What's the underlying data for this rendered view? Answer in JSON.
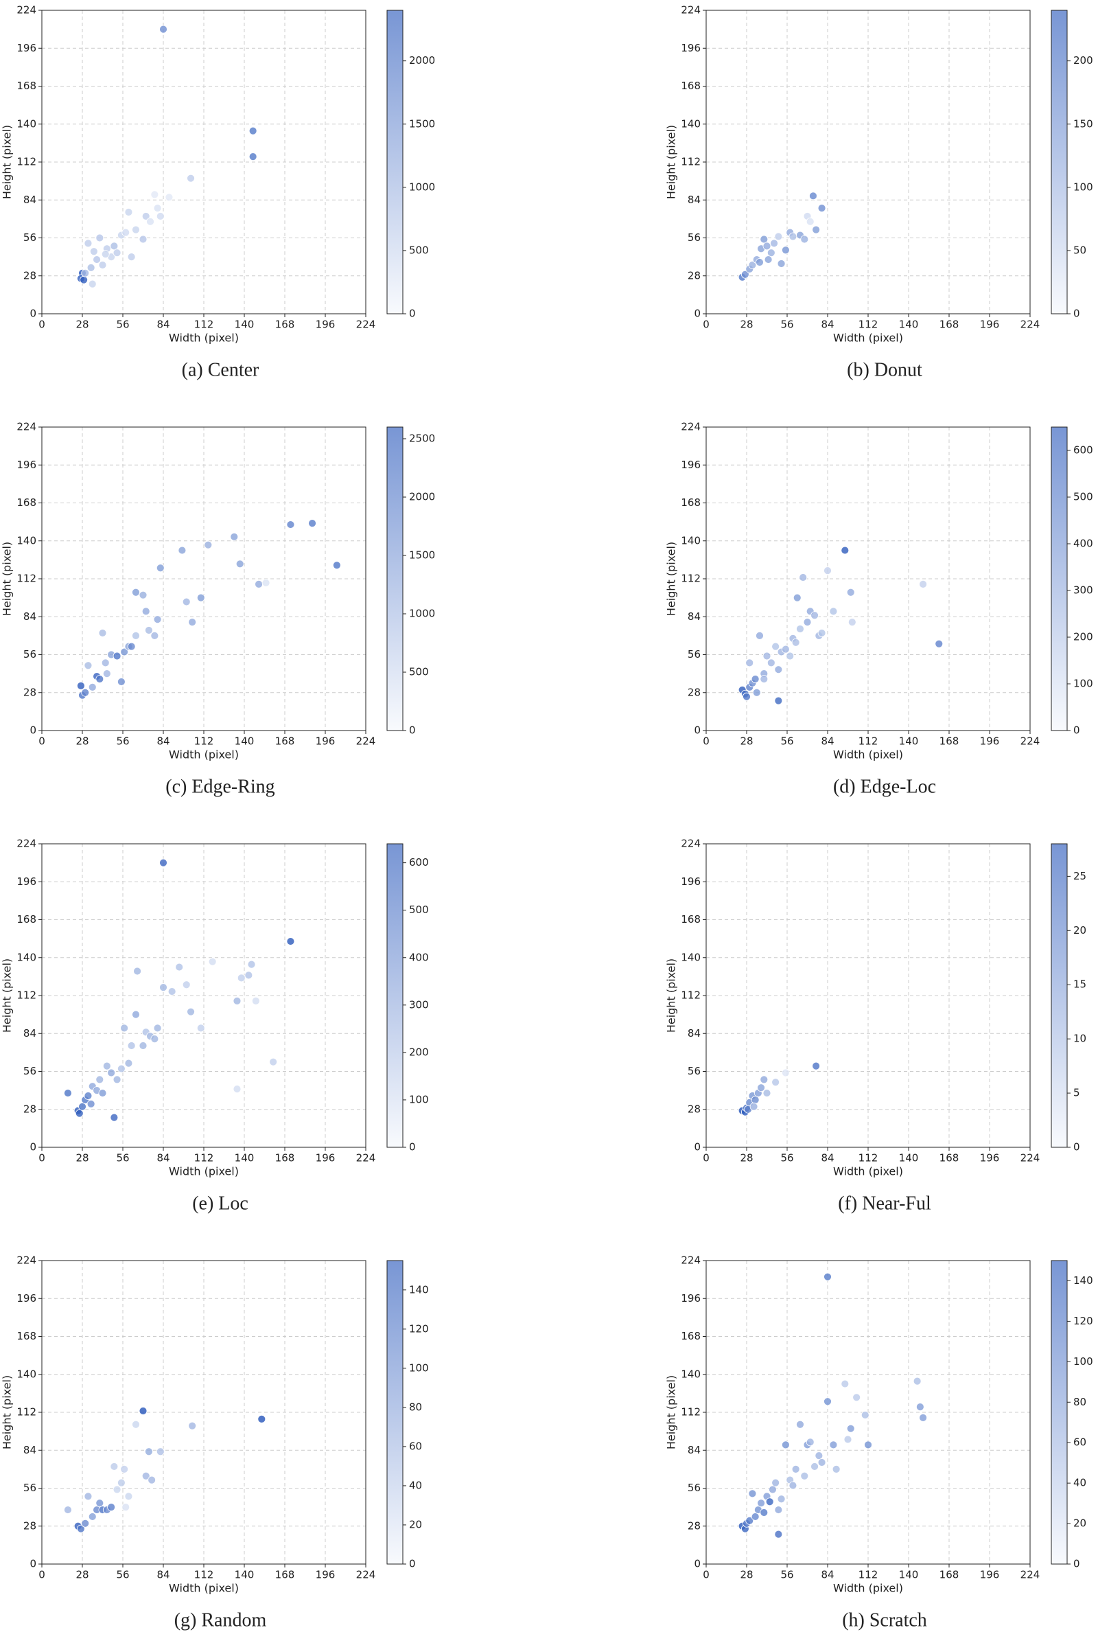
{
  "chart_data": [
    {
      "type": "scatter",
      "title": "(a) Center",
      "xlabel": "Width (pixel)",
      "ylabel": "Height (pixel)",
      "xlim": [
        0,
        224
      ],
      "ylim": [
        0,
        224
      ],
      "xticks": [
        0,
        28,
        56,
        84,
        112,
        140,
        168,
        196,
        224
      ],
      "yticks": [
        0,
        28,
        56,
        84,
        112,
        140,
        168,
        196,
        224
      ],
      "grid": true,
      "cmap": [
        "#f4f7fc",
        "#1f50b8"
      ],
      "clim": [
        0,
        2400
      ],
      "cticks": [
        0,
        500,
        1000,
        1500,
        2000
      ],
      "x": [
        84,
        146,
        146,
        103,
        78,
        88,
        28,
        27,
        29,
        32,
        35,
        40,
        45,
        50,
        55,
        60,
        62,
        70,
        72,
        75,
        80,
        82,
        58,
        48,
        38,
        42,
        34,
        30,
        52,
        65,
        36,
        44
      ],
      "values": [
        210,
        135,
        116,
        100,
        88,
        86,
        30,
        26,
        25,
        52,
        22,
        56,
        48,
        50,
        58,
        75,
        42,
        55,
        72,
        68,
        78,
        72,
        60,
        42,
        40,
        36,
        34,
        30,
        45,
        62,
        46,
        44
      ],
      "color_values": [
        1500,
        1800,
        1800,
        600,
        200,
        200,
        2300,
        2200,
        2200,
        600,
        500,
        700,
        600,
        800,
        500,
        500,
        600,
        700,
        600,
        300,
        300,
        400,
        400,
        500,
        700,
        600,
        800,
        900,
        600,
        500,
        600,
        500
      ]
    },
    {
      "type": "scatter",
      "title": "(b) Donut",
      "xlabel": "Width (pixel)",
      "ylabel": "Height (pixel)",
      "xlim": [
        0,
        224
      ],
      "ylim": [
        0,
        224
      ],
      "xticks": [
        0,
        28,
        56,
        84,
        112,
        140,
        168,
        196,
        224
      ],
      "yticks": [
        0,
        28,
        56,
        84,
        112,
        140,
        168,
        196,
        224
      ],
      "grid": true,
      "cmap": [
        "#f4f7fc",
        "#1f50b8"
      ],
      "clim": [
        0,
        240
      ],
      "cticks": [
        0,
        50,
        100,
        150,
        200
      ],
      "x": [
        25,
        27,
        30,
        32,
        35,
        38,
        40,
        42,
        45,
        47,
        50,
        55,
        58,
        60,
        65,
        70,
        72,
        74,
        76,
        80,
        37,
        43,
        52,
        68
      ],
      "values": [
        27,
        29,
        33,
        36,
        40,
        48,
        55,
        50,
        45,
        52,
        57,
        47,
        60,
        57,
        58,
        72,
        68,
        87,
        62,
        78,
        38,
        40,
        37,
        55
      ],
      "color_values": [
        180,
        150,
        120,
        100,
        110,
        120,
        130,
        110,
        100,
        90,
        60,
        140,
        110,
        80,
        120,
        40,
        30,
        160,
        130,
        150,
        130,
        120,
        120,
        100
      ]
    },
    {
      "type": "scatter",
      "title": "(c) Edge-Ring",
      "xlabel": "Width (pixel)",
      "ylabel": "Height (pixel)",
      "xlim": [
        0,
        224
      ],
      "ylim": [
        0,
        224
      ],
      "xticks": [
        0,
        28,
        56,
        84,
        112,
        140,
        168,
        196,
        224
      ],
      "yticks": [
        0,
        28,
        56,
        84,
        112,
        140,
        168,
        196,
        224
      ],
      "grid": true,
      "cmap": [
        "#f4f7fc",
        "#1f50b8"
      ],
      "clim": [
        0,
        2600
      ],
      "cticks": [
        0,
        500,
        1000,
        1500,
        2000,
        2500
      ],
      "x": [
        27,
        28,
        30,
        35,
        38,
        40,
        42,
        44,
        48,
        52,
        55,
        57,
        60,
        62,
        65,
        65,
        70,
        72,
        74,
        78,
        80,
        82,
        97,
        100,
        104,
        110,
        115,
        133,
        137,
        150,
        155,
        172,
        187,
        204,
        32,
        45
      ],
      "values": [
        33,
        26,
        28,
        32,
        40,
        38,
        72,
        50,
        56,
        55,
        36,
        58,
        62,
        62,
        70,
        102,
        100,
        88,
        74,
        70,
        82,
        120,
        133,
        95,
        80,
        98,
        137,
        143,
        123,
        108,
        109,
        152,
        153,
        122,
        48,
        42
      ],
      "color_values": [
        2400,
        2000,
        1800,
        1200,
        2300,
        2000,
        900,
        1000,
        1300,
        2000,
        1600,
        1500,
        1300,
        1700,
        800,
        1400,
        1100,
        1200,
        900,
        1000,
        1200,
        1400,
        1300,
        1000,
        1200,
        1400,
        1100,
        1300,
        1300,
        1200,
        300,
        1800,
        1900,
        2000,
        900,
        1000
      ]
    },
    {
      "type": "scatter",
      "title": "(d) Edge-Loc",
      "xlabel": "Width (pixel)",
      "ylabel": "Height (pixel)",
      "xlim": [
        0,
        224
      ],
      "ylim": [
        0,
        224
      ],
      "xticks": [
        0,
        28,
        56,
        84,
        112,
        140,
        168,
        196,
        224
      ],
      "yticks": [
        0,
        28,
        56,
        84,
        112,
        140,
        168,
        196,
        224
      ],
      "grid": true,
      "cmap": [
        "#f4f7fc",
        "#1f50b8"
      ],
      "clim": [
        0,
        650
      ],
      "cticks": [
        0,
        100,
        200,
        300,
        400,
        500,
        600
      ],
      "x": [
        25,
        27,
        28,
        30,
        32,
        34,
        35,
        37,
        40,
        42,
        45,
        48,
        50,
        50,
        52,
        55,
        58,
        60,
        62,
        63,
        65,
        67,
        70,
        72,
        75,
        78,
        80,
        84,
        88,
        96,
        100,
        101,
        150,
        161,
        30,
        40
      ],
      "values": [
        30,
        27,
        25,
        32,
        35,
        38,
        28,
        70,
        42,
        55,
        50,
        62,
        22,
        45,
        58,
        60,
        55,
        68,
        65,
        98,
        75,
        113,
        80,
        88,
        85,
        70,
        72,
        118,
        88,
        133,
        102,
        80,
        108,
        64,
        50,
        38
      ],
      "color_values": [
        600,
        550,
        500,
        450,
        400,
        420,
        350,
        300,
        300,
        250,
        250,
        200,
        550,
        300,
        250,
        250,
        200,
        250,
        220,
        350,
        200,
        250,
        300,
        300,
        250,
        250,
        200,
        150,
        200,
        600,
        300,
        150,
        150,
        450,
        250,
        250
      ]
    },
    {
      "type": "scatter",
      "title": "(e) Loc",
      "xlabel": "Width (pixel)",
      "ylabel": "Height (pixel)",
      "xlim": [
        0,
        224
      ],
      "ylim": [
        0,
        224
      ],
      "xticks": [
        0,
        28,
        56,
        84,
        112,
        140,
        168,
        196,
        224
      ],
      "yticks": [
        0,
        28,
        56,
        84,
        112,
        140,
        168,
        196,
        224
      ],
      "grid": true,
      "cmap": [
        "#f4f7fc",
        "#1f50b8"
      ],
      "clim": [
        0,
        640
      ],
      "cticks": [
        0,
        100,
        200,
        300,
        400,
        500,
        600
      ],
      "x": [
        18,
        25,
        26,
        28,
        30,
        32,
        34,
        35,
        38,
        40,
        42,
        45,
        48,
        50,
        52,
        55,
        57,
        60,
        62,
        65,
        66,
        70,
        72,
        75,
        78,
        80,
        84,
        84,
        90,
        95,
        100,
        103,
        110,
        118,
        135,
        138,
        143,
        145,
        148,
        160,
        135,
        172
      ],
      "values": [
        40,
        27,
        25,
        30,
        35,
        38,
        32,
        45,
        42,
        50,
        40,
        60,
        55,
        22,
        50,
        58,
        88,
        62,
        75,
        98,
        130,
        75,
        85,
        82,
        80,
        88,
        118,
        210,
        115,
        133,
        120,
        100,
        88,
        137,
        108,
        125,
        127,
        135,
        108,
        63,
        43,
        152
      ],
      "color_values": [
        500,
        600,
        580,
        500,
        480,
        450,
        400,
        300,
        300,
        250,
        350,
        250,
        300,
        550,
        250,
        200,
        250,
        250,
        200,
        300,
        250,
        250,
        200,
        250,
        250,
        250,
        250,
        550,
        200,
        200,
        150,
        250,
        150,
        100,
        250,
        150,
        200,
        200,
        100,
        150,
        100,
        600
      ]
    },
    {
      "type": "scatter",
      "title": "(f) Near-Ful",
      "xlabel": "Width (pixel)",
      "ylabel": "Height (pixel)",
      "xlim": [
        0,
        224
      ],
      "ylim": [
        0,
        224
      ],
      "xticks": [
        0,
        28,
        56,
        84,
        112,
        140,
        168,
        196,
        224
      ],
      "yticks": [
        0,
        28,
        56,
        84,
        112,
        140,
        168,
        196,
        224
      ],
      "grid": true,
      "cmap": [
        "#f4f7fc",
        "#1f50b8"
      ],
      "clim": [
        0,
        28
      ],
      "cticks": [
        0,
        5,
        10,
        15,
        20,
        25
      ],
      "x": [
        25,
        27,
        28,
        30,
        32,
        34,
        36,
        38,
        40,
        42,
        48,
        55,
        76,
        29,
        33
      ],
      "values": [
        27,
        26,
        29,
        33,
        38,
        35,
        40,
        44,
        50,
        40,
        48,
        55,
        60,
        28,
        30
      ],
      "color_values": [
        27,
        26,
        22,
        18,
        16,
        18,
        15,
        14,
        13,
        10,
        8,
        3,
        22,
        20,
        12
      ]
    },
    {
      "type": "scatter",
      "title": "(g) Random",
      "xlabel": "Width (pixel)",
      "ylabel": "Height (pixel)",
      "xlim": [
        0,
        224
      ],
      "ylim": [
        0,
        224
      ],
      "xticks": [
        0,
        28,
        56,
        84,
        112,
        140,
        168,
        196,
        224
      ],
      "yticks": [
        0,
        28,
        56,
        84,
        112,
        140,
        168,
        196,
        224
      ],
      "grid": true,
      "cmap": [
        "#f4f7fc",
        "#1f50b8"
      ],
      "clim": [
        0,
        155
      ],
      "cticks": [
        0,
        20,
        40,
        60,
        80,
        100,
        120,
        140
      ],
      "x": [
        18,
        25,
        27,
        30,
        32,
        35,
        38,
        40,
        42,
        45,
        48,
        50,
        52,
        55,
        57,
        58,
        60,
        65,
        70,
        72,
        74,
        76,
        82,
        104,
        152
      ],
      "values": [
        40,
        28,
        26,
        30,
        50,
        35,
        40,
        45,
        40,
        40,
        42,
        72,
        55,
        60,
        70,
        42,
        50,
        103,
        113,
        65,
        83,
        62,
        83,
        102,
        107
      ],
      "color_values": [
        60,
        140,
        120,
        100,
        60,
        80,
        100,
        90,
        120,
        100,
        110,
        40,
        30,
        40,
        35,
        20,
        30,
        30,
        150,
        60,
        70,
        60,
        50,
        60,
        150
      ]
    },
    {
      "type": "scatter",
      "title": "(h) Scratch",
      "xlabel": "Width (pixel)",
      "ylabel": "Height (pixel)",
      "xlim": [
        0,
        224
      ],
      "ylim": [
        0,
        224
      ],
      "xticks": [
        0,
        28,
        56,
        84,
        112,
        140,
        168,
        196,
        224
      ],
      "yticks": [
        0,
        28,
        56,
        84,
        112,
        140,
        168,
        196,
        224
      ],
      "grid": true,
      "cmap": [
        "#f4f7fc",
        "#1f50b8"
      ],
      "clim": [
        0,
        150
      ],
      "cticks": [
        0,
        20,
        40,
        60,
        80,
        100,
        120,
        140
      ],
      "x": [
        25,
        27,
        28,
        30,
        32,
        34,
        36,
        38,
        40,
        42,
        44,
        46,
        48,
        50,
        50,
        52,
        55,
        58,
        60,
        62,
        65,
        68,
        70,
        72,
        75,
        78,
        80,
        84,
        84,
        88,
        90,
        96,
        100,
        104,
        110,
        112,
        146,
        148,
        150,
        98
      ],
      "values": [
        28,
        26,
        30,
        32,
        52,
        35,
        40,
        45,
        38,
        50,
        46,
        55,
        60,
        22,
        40,
        48,
        88,
        62,
        58,
        70,
        103,
        65,
        88,
        90,
        72,
        80,
        75,
        120,
        212,
        88,
        70,
        133,
        100,
        123,
        110,
        88,
        135,
        116,
        108,
        92
      ],
      "color_values": [
        140,
        130,
        120,
        110,
        90,
        100,
        90,
        80,
        110,
        80,
        130,
        70,
        60,
        120,
        70,
        60,
        90,
        50,
        60,
        60,
        70,
        50,
        80,
        60,
        50,
        60,
        60,
        90,
        110,
        80,
        50,
        40,
        80,
        40,
        50,
        90,
        50,
        80,
        80,
        40
      ]
    }
  ]
}
